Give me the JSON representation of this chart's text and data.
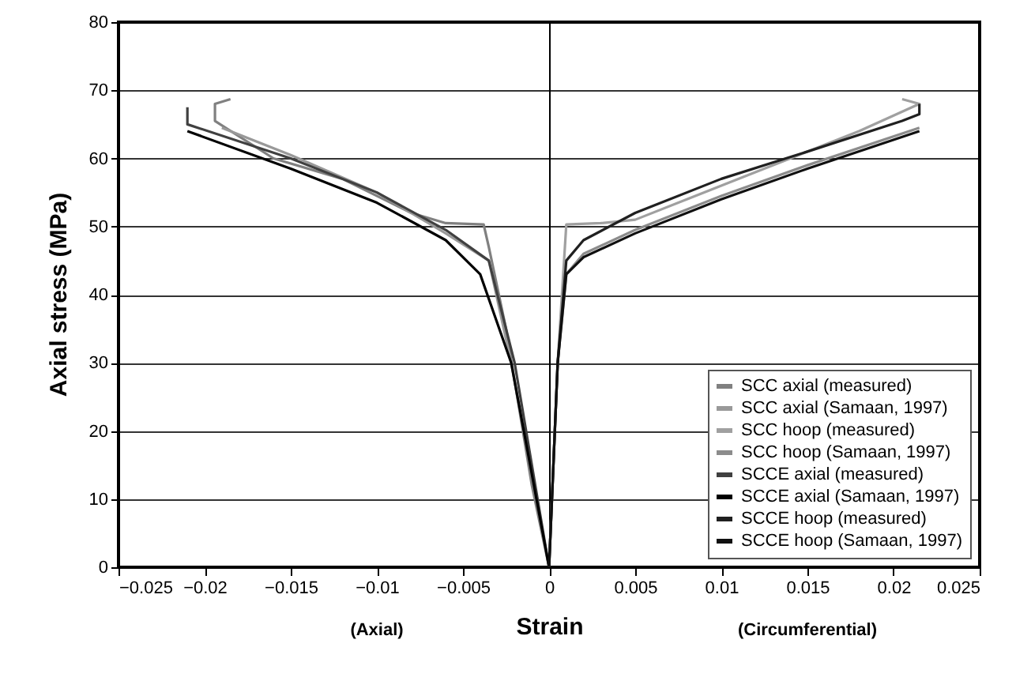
{
  "chart_data": {
    "type": "line",
    "xlabel": "Strain",
    "ylabel": "Axial stress (MPa)",
    "annotations": [
      "(Axial)",
      "(Circumferential)"
    ],
    "xlim": [
      -0.025,
      0.025
    ],
    "xticks": [
      -0.025,
      -0.02,
      -0.015,
      -0.01,
      -0.005,
      0,
      0.005,
      0.01,
      0.015,
      0.02,
      0.025
    ],
    "ylim": [
      0,
      80
    ],
    "yticks": [
      0,
      10,
      20,
      30,
      40,
      50,
      60,
      70,
      80
    ],
    "grid": "y",
    "legend": "bottom right",
    "series": [
      {
        "name": "SCC axial (measured)",
        "color": "#808080",
        "x": [
          0,
          -0.001,
          -0.0025,
          -0.0035,
          -0.0038,
          -0.006,
          -0.008,
          -0.012,
          -0.016,
          -0.0194,
          -0.0194,
          -0.0185
        ],
        "values": [
          0,
          12,
          35,
          47,
          50.3,
          50.5,
          52,
          57,
          60,
          65.5,
          68,
          68.7
        ]
      },
      {
        "name": "SCC axial (Samaan, 1997)",
        "color": "#999999",
        "x": [
          0,
          -0.0022,
          -0.0035,
          -0.006,
          -0.01,
          -0.015,
          -0.019
        ],
        "values": [
          0,
          30,
          45,
          49,
          55,
          60.5,
          64.5
        ]
      },
      {
        "name": "SCC hoop (measured)",
        "color": "#a0a0a0",
        "x": [
          0,
          0.0005,
          0.001,
          0.003,
          0.005,
          0.008,
          0.012,
          0.018,
          0.0215,
          0.0205
        ],
        "values": [
          0,
          30,
          50.3,
          50.5,
          51,
          54,
          58,
          64,
          68,
          68.7
        ]
      },
      {
        "name": "SCC hoop (Samaan, 1997)",
        "color": "#8c8c8c",
        "x": [
          0,
          0.0005,
          0.001,
          0.002,
          0.005,
          0.01,
          0.015,
          0.0215
        ],
        "values": [
          0,
          30,
          43,
          46,
          49.5,
          54.5,
          59,
          64.5
        ]
      },
      {
        "name": "SCCE axial (measured)",
        "color": "#404040",
        "x": [
          0,
          -0.002,
          -0.0035,
          -0.006,
          -0.01,
          -0.015,
          -0.021,
          -0.021
        ],
        "values": [
          0,
          30,
          45,
          49.5,
          55,
          60,
          65,
          67.5
        ]
      },
      {
        "name": "SCCE axial (Samaan, 1997)",
        "color": "#000000",
        "x": [
          0,
          -0.0022,
          -0.004,
          -0.006,
          -0.01,
          -0.015,
          -0.021
        ],
        "values": [
          0,
          30,
          43,
          48,
          53.5,
          58.5,
          64
        ]
      },
      {
        "name": "SCCE hoop (measured)",
        "color": "#202020",
        "x": [
          0,
          0.0005,
          0.001,
          0.002,
          0.005,
          0.01,
          0.015,
          0.0205,
          0.0215,
          0.0215
        ],
        "values": [
          0,
          30,
          45,
          48,
          52,
          57,
          61,
          65.5,
          66.5,
          68
        ]
      },
      {
        "name": "SCCE hoop (Samaan, 1997)",
        "color": "#101010",
        "x": [
          0,
          0.0005,
          0.001,
          0.002,
          0.005,
          0.01,
          0.015,
          0.0215
        ],
        "values": [
          0,
          30,
          43,
          45.5,
          49,
          54,
          58.5,
          64
        ]
      }
    ]
  }
}
